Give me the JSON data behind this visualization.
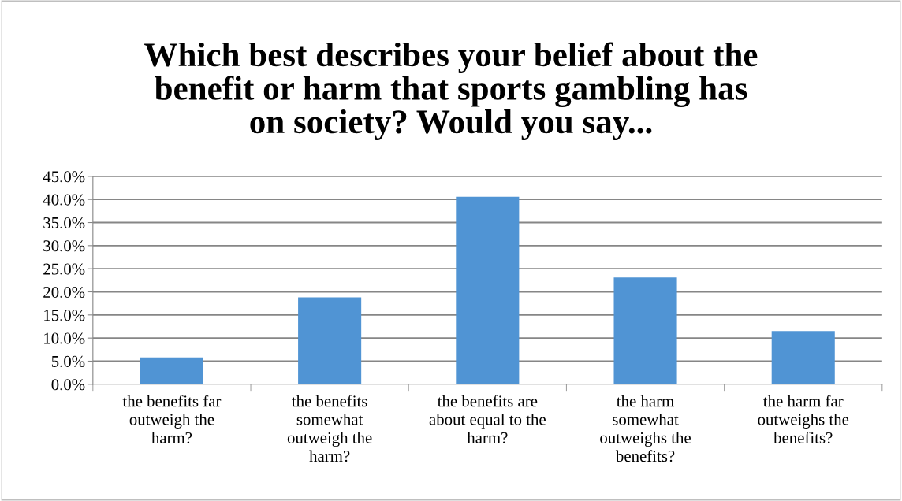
{
  "chart_data": {
    "type": "bar",
    "title": "Which best describes your belief about the\nbenefit or harm that sports gambling has\non society? Would you say...",
    "categories": [
      "the benefits far\noutweigh the\nharm?",
      "the benefits\nsomewhat\noutweigh the\nharm?",
      "the benefits are\nabout equal to the\nharm?",
      "the harm\nsomewhat\noutweighs the\nbenefits?",
      "the harm far\noutweighs the\nbenefits?"
    ],
    "values": [
      5.8,
      18.8,
      40.6,
      23.1,
      11.5
    ],
    "color": "#5094d4",
    "ylim": [
      0,
      45
    ],
    "yticks": [
      {
        "value": 0,
        "label": "0.0%"
      },
      {
        "value": 5,
        "label": "5.0%"
      },
      {
        "value": 10,
        "label": "10.0%"
      },
      {
        "value": 15,
        "label": "15.0%"
      },
      {
        "value": 20,
        "label": "20.0%"
      },
      {
        "value": 25,
        "label": "25.0%"
      },
      {
        "value": 30,
        "label": "30.0%"
      },
      {
        "value": 35,
        "label": "35.0%"
      },
      {
        "value": 40,
        "label": "40.0%"
      },
      {
        "value": 45,
        "label": "45.0%"
      }
    ],
    "grid": "y"
  }
}
